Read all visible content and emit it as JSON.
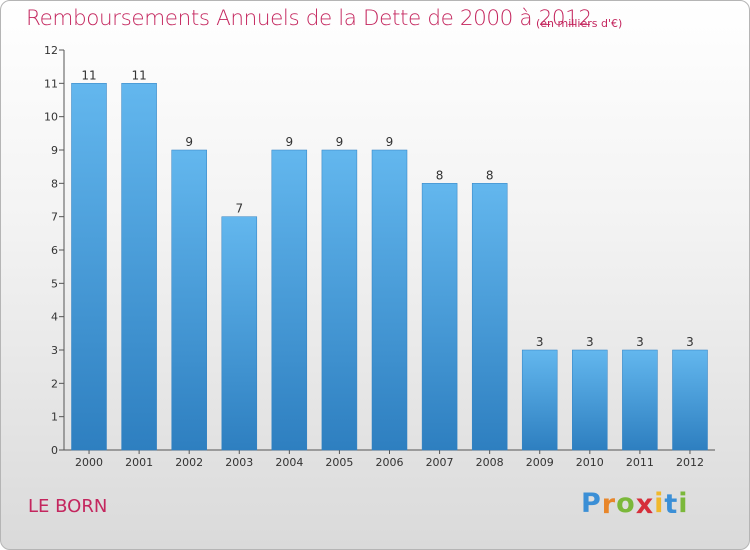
{
  "title": "Remboursements Annuels de la Dette de 2000 à 2012",
  "subtitle": "(en milliers d'€)",
  "commune": "LE BORN",
  "logo": {
    "letters": [
      "P",
      "r",
      "o",
      "x",
      "i",
      "t",
      "i"
    ],
    "colors": [
      "#3b8fd6",
      "#e8862a",
      "#7bb83a",
      "#d62f3a",
      "#f0b82c",
      "#3b8fd6",
      "#7bb83a"
    ]
  },
  "colors": {
    "bar_light": "#63b7ee",
    "bar_dark": "#2e7fc0",
    "title": "#c4265e"
  },
  "chart_data": {
    "type": "bar",
    "title": "Remboursements Annuels de la Dette de 2000 à 2012",
    "xlabel": "",
    "ylabel": "",
    "categories": [
      "2000",
      "2001",
      "2002",
      "2003",
      "2004",
      "2005",
      "2006",
      "2007",
      "2008",
      "2009",
      "2010",
      "2011",
      "2012"
    ],
    "values": [
      11,
      11,
      9,
      7,
      9,
      9,
      9,
      8,
      8,
      3,
      3,
      3,
      3
    ],
    "ylim": [
      0,
      12
    ],
    "yticks": [
      0,
      1,
      2,
      3,
      4,
      5,
      6,
      7,
      8,
      9,
      10,
      11,
      12
    ],
    "grid": false,
    "legend": "none"
  }
}
